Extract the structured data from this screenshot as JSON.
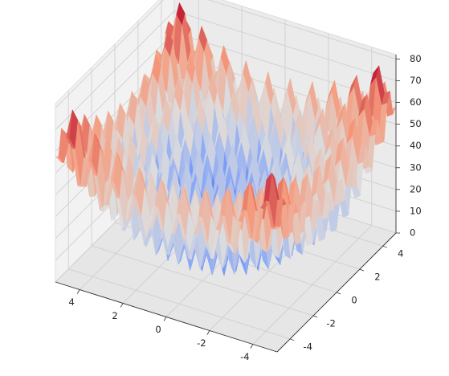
{
  "chart_data": {
    "type": "surface3d",
    "title": "",
    "xlabel": "",
    "ylabel": "",
    "zlabel": "",
    "function": "Rastrigin: z = 20 + x^2 + y^2 - 10*(cos(2*pi*x) + cos(2*pi*y))",
    "colormap": "coolwarm",
    "colors": {
      "low": "#3b4cc0",
      "mid": "#dddddd",
      "high": "#b40426"
    },
    "x_range": [
      -5.12,
      5.12
    ],
    "y_range": [
      -5.12,
      5.12
    ],
    "zlim": [
      0,
      82
    ],
    "grid_points": 40,
    "x_ticks": [
      "-4",
      "-2",
      "0",
      "2",
      "4"
    ],
    "y_ticks": [
      "-4",
      "-2",
      "0",
      "2",
      "4"
    ],
    "z_ticks": [
      "0",
      "10",
      "20",
      "30",
      "40",
      "50",
      "60",
      "70",
      "80"
    ],
    "x_tick_values": [
      -4,
      -2,
      0,
      2,
      4
    ],
    "y_tick_values": [
      -4,
      -2,
      0,
      2,
      4
    ],
    "z_tick_values": [
      0,
      10,
      20,
      30,
      40,
      50,
      60,
      70,
      80
    ],
    "grid": true
  }
}
